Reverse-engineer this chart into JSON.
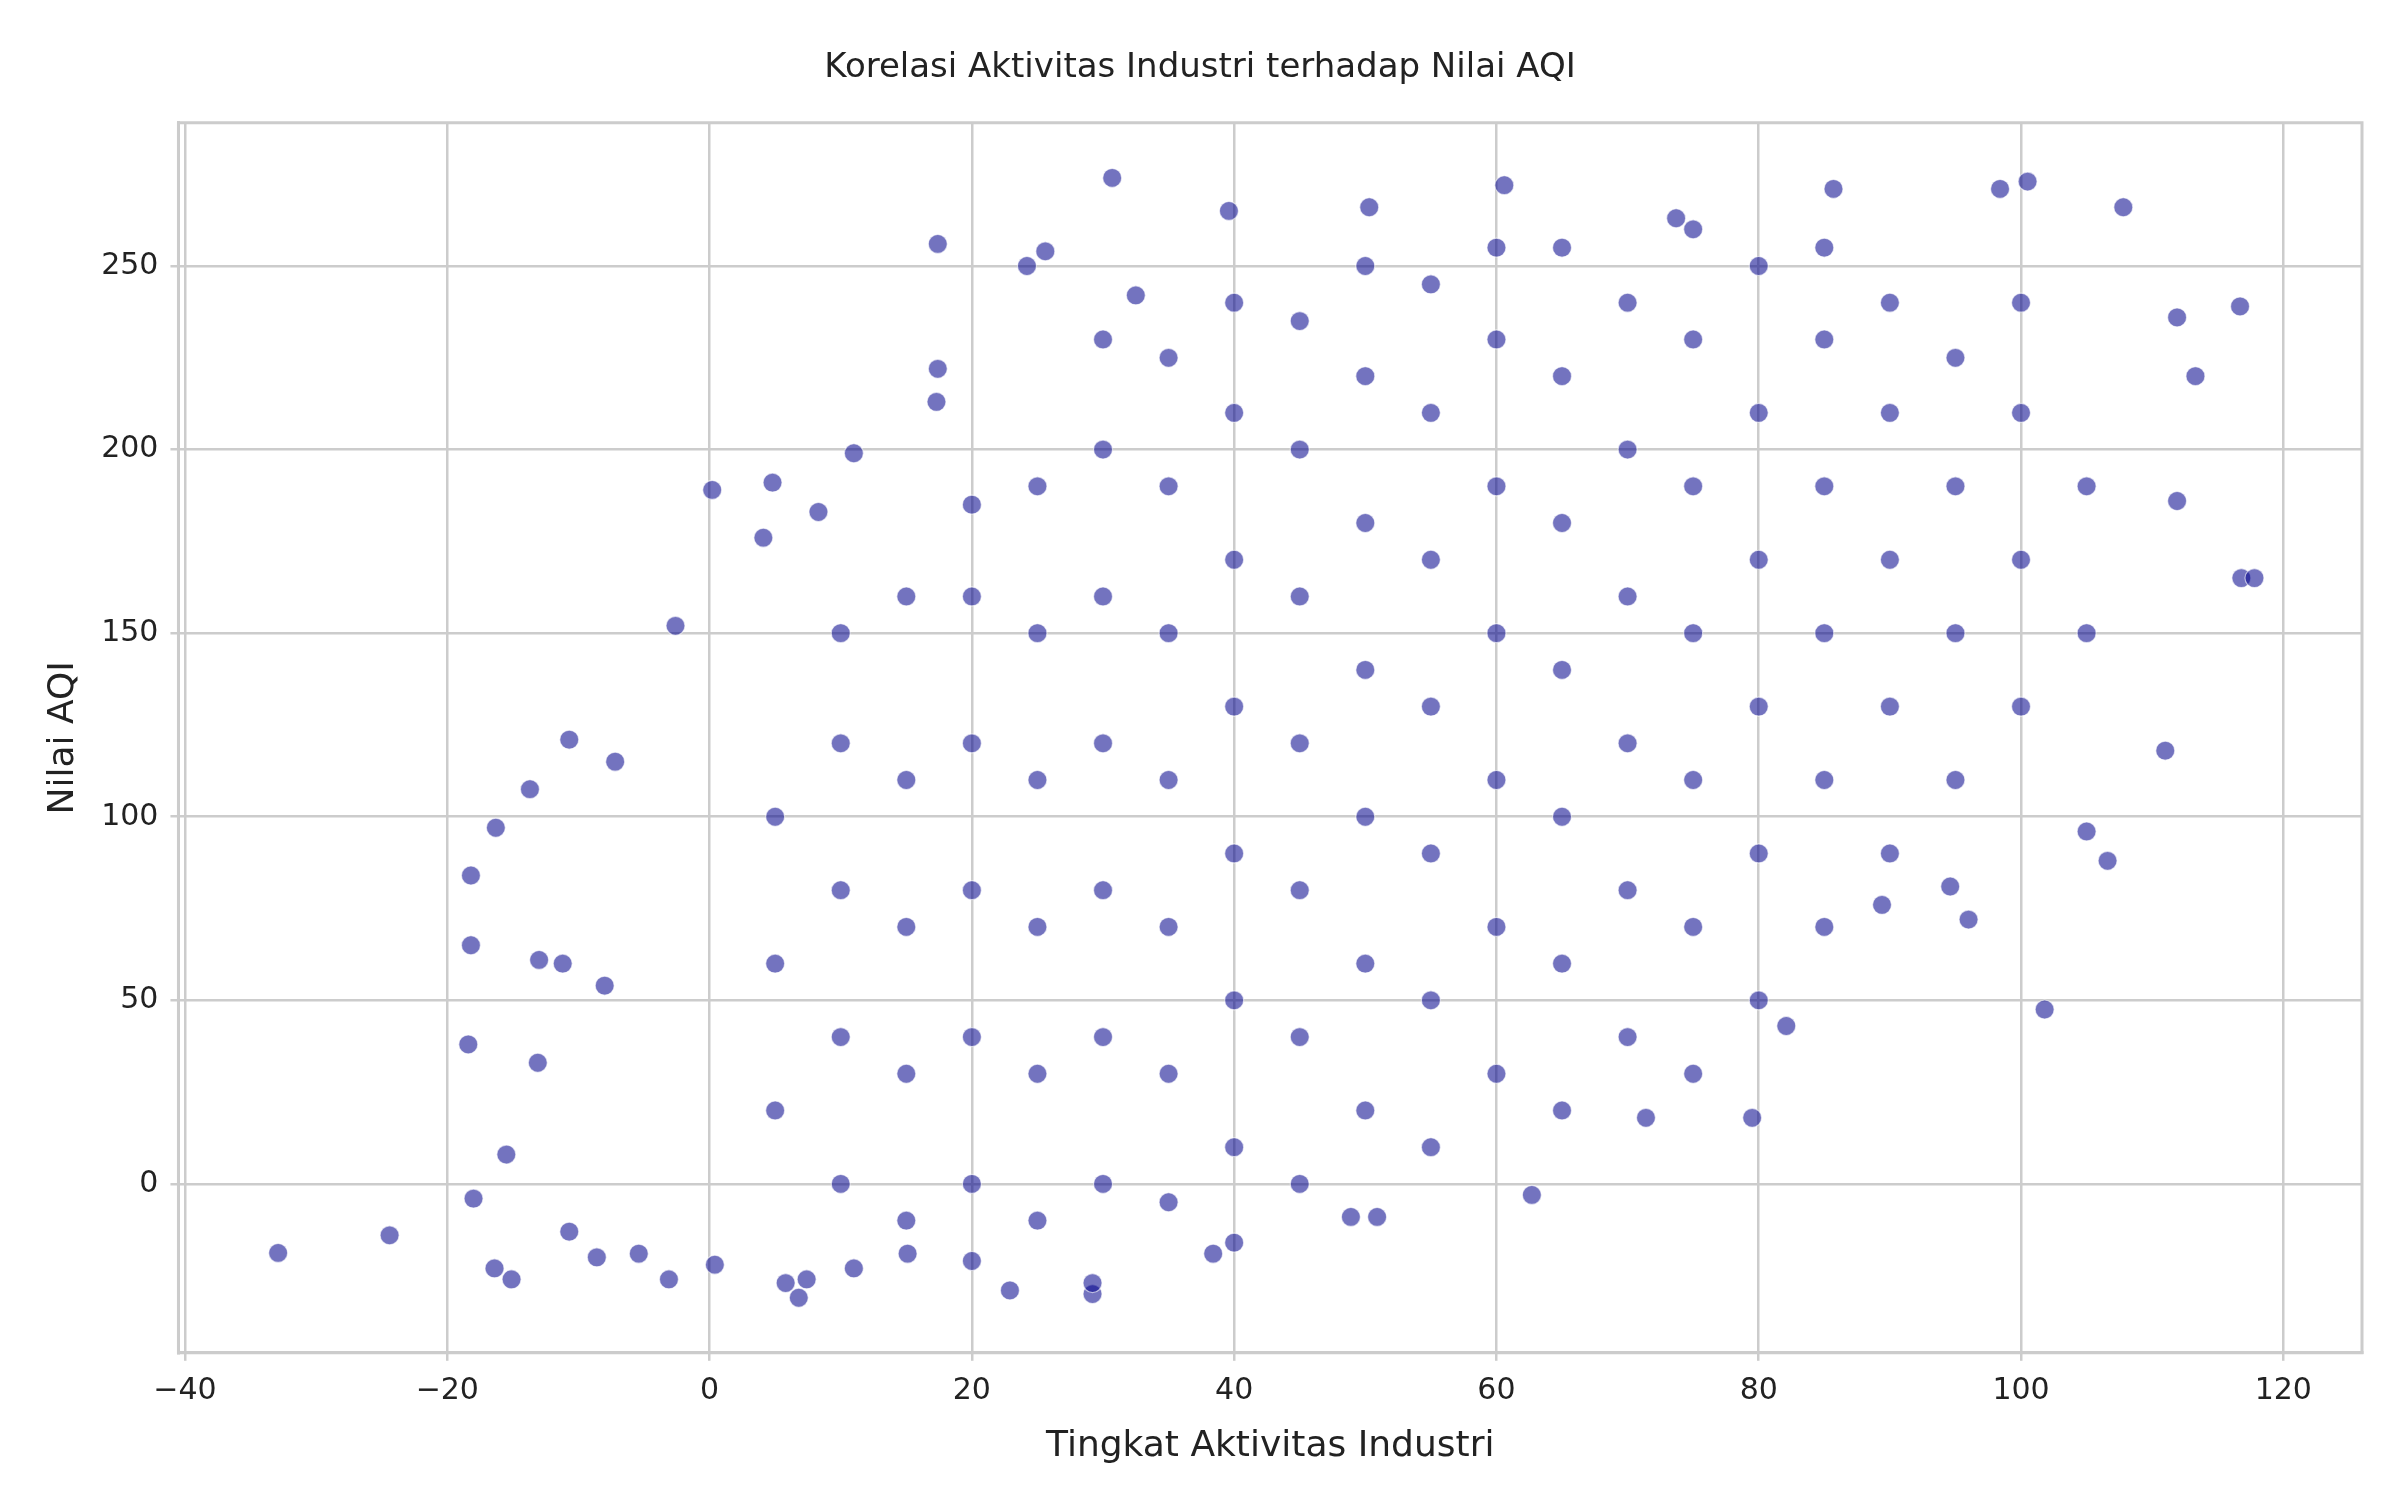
{
  "chart_data": {
    "type": "scatter",
    "title": "Korelasi Aktivitas Industri terhadap Nilai AQI",
    "xlabel": "Tingkat Aktivitas Industri",
    "ylabel": "Nilai AQI",
    "xlim": [
      -40.5,
      126
    ],
    "ylim": [
      -46,
      289
    ],
    "xticks": [
      {
        "value": -40,
        "label": "−40"
      },
      {
        "value": -20,
        "label": "−20"
      },
      0,
      20,
      40,
      60,
      80,
      100,
      120
    ],
    "yticks": [
      0,
      50,
      100,
      150,
      200,
      250
    ],
    "grid": true,
    "marker": "circle",
    "legend": false,
    "series": [
      {
        "color": "#00008b",
        "x": [
          -32.9,
          -24.4,
          -18.2,
          -18.2,
          -18.4,
          -18,
          -16.3,
          -16.4,
          -15.1,
          -15.5,
          -13.7,
          -13,
          -13.1,
          -10.7,
          -11.2,
          -10.7,
          -8.6,
          -8,
          -7.2,
          -2.6,
          0.2,
          4.8,
          4.1,
          8.3,
          11,
          17.4,
          17.4,
          17.3,
          24.2,
          25.6,
          30.7,
          32.5,
          39.6,
          50.3,
          60.6,
          73.7,
          85.7,
          98.4,
          100.5,
          107.8,
          111.9,
          113.3,
          111.9,
          116.8,
          117.8,
          116.7,
          111,
          106.6,
          105,
          101.8,
          96,
          94.6,
          89.4,
          82.1,
          79.5,
          71.4,
          62.7,
          50.9,
          48.9,
          40,
          38.4,
          29.2,
          29.2,
          22.9,
          20,
          15.1,
          11,
          6.8,
          7.4,
          5.8,
          0.4,
          -3.1,
          -5.4,
          5,
          5,
          5,
          10,
          10,
          10,
          10,
          10,
          15,
          15,
          15,
          15,
          15,
          20,
          20,
          20,
          20,
          20,
          20,
          25,
          25,
          25,
          25,
          25,
          25,
          30,
          30,
          30,
          30,
          30,
          30,
          30,
          35,
          35,
          35,
          35,
          35,
          35,
          35,
          40,
          40,
          40,
          40,
          40,
          40,
          40,
          45,
          45,
          45,
          45,
          45,
          45,
          45,
          50,
          50,
          50,
          50,
          50,
          50,
          50,
          55,
          55,
          55,
          55,
          55,
          55,
          55,
          60,
          60,
          60,
          60,
          60,
          60,
          60,
          65,
          65,
          65,
          65,
          65,
          65,
          65,
          70,
          70,
          70,
          70,
          70,
          70,
          75,
          75,
          75,
          75,
          75,
          75,
          75,
          80,
          80,
          80,
          80,
          80,
          80,
          85,
          85,
          85,
          85,
          85,
          85,
          90,
          90,
          90,
          90,
          90,
          95,
          95,
          95,
          95,
          100,
          100,
          100,
          100,
          105,
          105
        ],
        "values": [
          -18.8,
          -14,
          84,
          65,
          38,
          -4,
          97,
          -23,
          -26,
          8,
          107.5,
          61,
          33,
          121,
          60,
          -13,
          -20,
          54,
          115,
          152,
          189,
          191,
          176,
          183,
          199,
          256,
          222,
          213,
          250,
          254,
          274,
          242,
          265,
          266,
          272,
          263,
          271,
          271,
          273,
          266,
          236,
          220,
          186,
          165,
          165,
          239,
          118,
          88,
          96,
          47.5,
          72,
          81,
          76,
          43,
          18,
          18,
          -3,
          -9,
          -9,
          -16,
          -19,
          -30,
          -27,
          -29,
          -21,
          -19,
          -23,
          -31,
          -26,
          -27,
          -22,
          -26,
          -19,
          20,
          60,
          100,
          0,
          40,
          80,
          120,
          150,
          -10,
          30,
          70,
          110,
          160,
          0,
          40,
          80,
          120,
          160,
          185,
          -10,
          30,
          70,
          110,
          150,
          190,
          0,
          40,
          80,
          120,
          160,
          200,
          230,
          -5,
          30,
          70,
          110,
          150,
          190,
          225,
          10,
          50,
          90,
          130,
          170,
          210,
          240,
          0,
          40,
          80,
          120,
          160,
          200,
          235,
          20,
          60,
          100,
          140,
          180,
          220,
          250,
          10,
          50,
          90,
          130,
          170,
          210,
          245,
          30,
          70,
          110,
          150,
          190,
          230,
          255,
          20,
          60,
          100,
          140,
          180,
          220,
          255,
          40,
          80,
          120,
          160,
          200,
          240,
          30,
          70,
          110,
          150,
          190,
          230,
          260,
          50,
          90,
          130,
          170,
          210,
          250,
          70,
          110,
          150,
          190,
          230,
          255,
          90,
          130,
          170,
          210,
          240,
          110,
          150,
          190,
          225,
          130,
          170,
          210,
          240,
          150,
          190
        ]
      }
    ]
  }
}
